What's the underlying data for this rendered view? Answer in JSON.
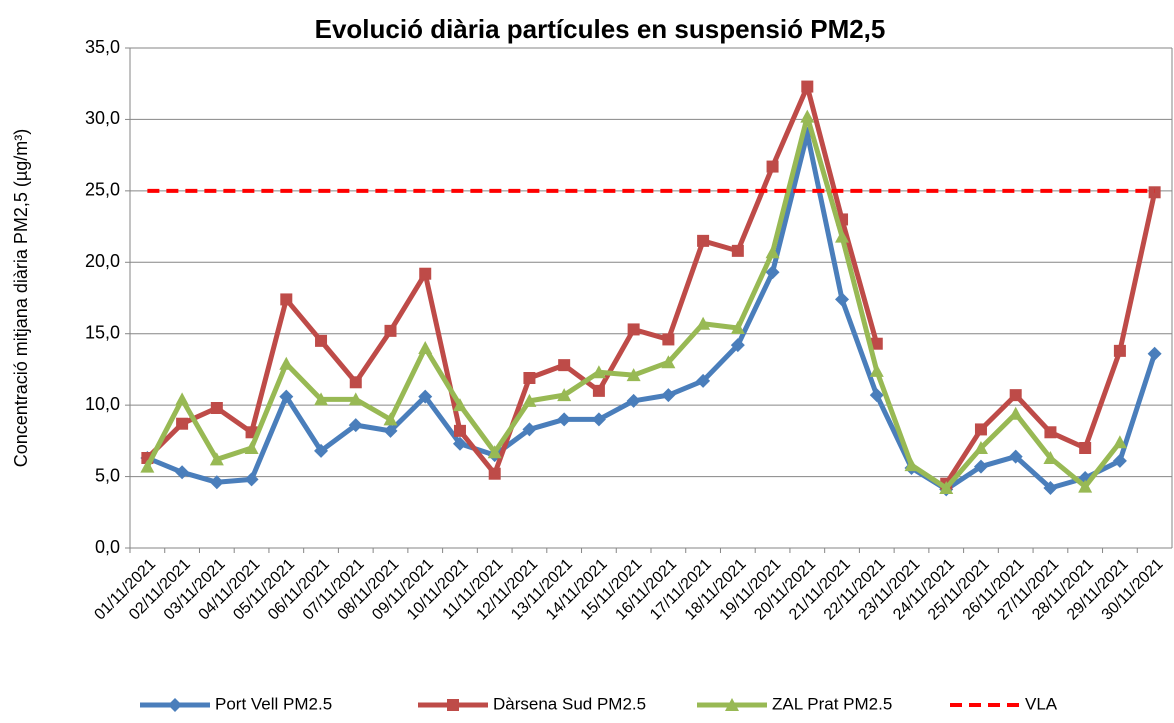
{
  "chart_data": {
    "type": "line",
    "title": "Evolució diària partícules en suspensió  PM2,5",
    "y_label": "Concentració mitjana diària PM2,5 (µg/m³)",
    "categories": [
      "01/11/2021",
      "02/11/2021",
      "03/11/2021",
      "04/11/2021",
      "05/11/2021",
      "06/11/2021",
      "07/11/2021",
      "08/11/2021",
      "09/11/2021",
      "10/11/2021",
      "11/11/2021",
      "12/11/2021",
      "13/11/2021",
      "14/11/2021",
      "15/11/2021",
      "16/11/2021",
      "17/11/2021",
      "18/11/2021",
      "19/11/2021",
      "20/11/2021",
      "21/11/2021",
      "22/11/2021",
      "23/11/2021",
      "24/11/2021",
      "25/11/2021",
      "26/11/2021",
      "27/11/2021",
      "28/11/2021",
      "29/11/2021",
      "30/11/2021"
    ],
    "series": [
      {
        "name": "Port Vell PM2.5",
        "color": "#4a7ebb",
        "marker": "diamond",
        "dashed": false,
        "values": [
          6.3,
          5.3,
          4.6,
          4.8,
          10.6,
          6.8,
          8.6,
          8.2,
          10.6,
          7.3,
          6.5,
          8.3,
          9.0,
          9.0,
          10.3,
          10.7,
          11.7,
          14.2,
          19.3,
          29.0,
          17.4,
          10.7,
          5.6,
          4.1,
          5.7,
          6.4,
          4.2,
          4.9,
          6.1,
          13.6
        ]
      },
      {
        "name": "Dàrsena Sud PM2.5",
        "color": "#be4b48",
        "marker": "square",
        "dashed": false,
        "values": [
          6.3,
          8.7,
          9.8,
          8.1,
          17.4,
          14.5,
          11.6,
          15.2,
          19.2,
          8.2,
          5.2,
          11.9,
          12.8,
          11.0,
          15.3,
          14.6,
          21.5,
          20.8,
          26.7,
          32.3,
          23.0,
          14.3,
          null,
          4.5,
          8.3,
          10.7,
          8.1,
          7.0,
          13.8,
          24.9
        ]
      },
      {
        "name": "ZAL Prat PM2.5",
        "color": "#98b954",
        "marker": "triangle",
        "dashed": false,
        "values": [
          5.7,
          10.4,
          6.2,
          7.0,
          12.9,
          10.4,
          10.4,
          9.0,
          14.0,
          10.0,
          6.7,
          10.3,
          10.7,
          12.3,
          12.1,
          13.0,
          15.7,
          15.4,
          20.7,
          30.2,
          21.8,
          12.4,
          5.8,
          4.2,
          7.0,
          9.4,
          6.3,
          4.3,
          7.4,
          null
        ]
      },
      {
        "name": "VLA",
        "color": "#ff0000",
        "marker": "none",
        "dashed": true,
        "values": [
          25,
          25,
          25,
          25,
          25,
          25,
          25,
          25,
          25,
          25,
          25,
          25,
          25,
          25,
          25,
          25,
          25,
          25,
          25,
          25,
          25,
          25,
          25,
          25,
          25,
          25,
          25,
          25,
          25,
          25
        ]
      }
    ],
    "ylim": [
      0,
      35
    ],
    "yticks": [
      {
        "value": 0,
        "label": "0,0"
      },
      {
        "value": 5,
        "label": "5,0"
      },
      {
        "value": 10,
        "label": "10,0"
      },
      {
        "value": 15,
        "label": "15,0"
      },
      {
        "value": 20,
        "label": "20,0"
      },
      {
        "value": 25,
        "label": "25,0"
      },
      {
        "value": 30,
        "label": "30,0"
      },
      {
        "value": 35,
        "label": "35,0"
      }
    ],
    "grid": true,
    "legend": "bottom"
  }
}
